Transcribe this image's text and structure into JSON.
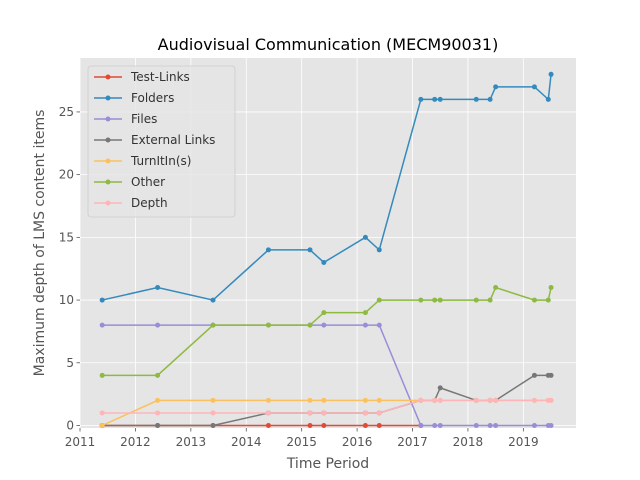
{
  "chart_data": {
    "type": "line",
    "title": "Audiovisual Communication (MECM90031)",
    "xlabel": "Time Period",
    "ylabel": "Maximum depth of LMS content items",
    "xlim": [
      2011.0,
      2019.95
    ],
    "ylim": [
      -0.2,
      29.3
    ],
    "x_ticks": [
      2011,
      2012,
      2013,
      2014,
      2015,
      2016,
      2017,
      2018,
      2019
    ],
    "y_ticks": [
      0,
      5,
      10,
      15,
      20,
      25
    ],
    "grid": true,
    "legend_position": "top-left",
    "x": [
      2011.4,
      2012.4,
      2013.4,
      2014.4,
      2015.15,
      2015.4,
      2016.15,
      2016.4,
      2017.15,
      2017.4,
      2017.5,
      2018.15,
      2018.4,
      2018.5,
      2019.2,
      2019.45,
      2019.5
    ],
    "series": [
      {
        "name": "Test-Links",
        "color": "#E24A33",
        "values": [
          0,
          0,
          0,
          0,
          0,
          0,
          0,
          0,
          0,
          null,
          null,
          null,
          null,
          null,
          null,
          null,
          null
        ]
      },
      {
        "name": "Folders",
        "color": "#348ABD",
        "values": [
          10,
          11,
          10,
          14,
          14,
          13,
          15,
          14,
          26,
          26,
          26,
          26,
          26,
          27,
          27,
          26,
          28
        ]
      },
      {
        "name": "Files",
        "color": "#988ED5",
        "values": [
          8,
          8,
          8,
          8,
          8,
          8,
          8,
          8,
          0,
          0,
          0,
          0,
          0,
          0,
          0,
          0,
          0
        ]
      },
      {
        "name": "External Links",
        "color": "#777777",
        "values": [
          0,
          0,
          0,
          1,
          1,
          1,
          1,
          1,
          2,
          2,
          3,
          2,
          2,
          2,
          4,
          4,
          4
        ]
      },
      {
        "name": "TurnItIn(s)",
        "color": "#FBC15E",
        "values": [
          0,
          2,
          2,
          2,
          2,
          2,
          2,
          2,
          2,
          2,
          2,
          2,
          2,
          2,
          2,
          2,
          2
        ]
      },
      {
        "name": "Other",
        "color": "#8EBA42",
        "values": [
          4,
          4,
          8,
          8,
          8,
          9,
          9,
          10,
          10,
          10,
          10,
          10,
          10,
          11,
          10,
          10,
          11
        ]
      },
      {
        "name": "Depth",
        "color": "#FFB5B8",
        "values": [
          1,
          1,
          1,
          1,
          1,
          1,
          1,
          1,
          2,
          2,
          2,
          2,
          2,
          2,
          2,
          2,
          2
        ]
      }
    ]
  }
}
